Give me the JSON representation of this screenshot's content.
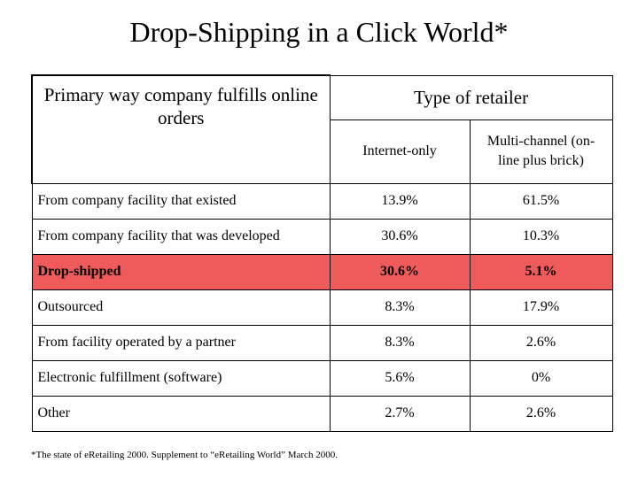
{
  "title": "Drop-Shipping in a Click World*",
  "header": {
    "left": "Primary way company fulfills online orders",
    "group": "Type of retailer",
    "col1": "Internet-only",
    "col2": "Multi-channel (on-line plus brick)"
  },
  "highlight_color": "#ef5a5a",
  "rows": [
    {
      "label": "From company facility that existed",
      "internet": "13.9%",
      "multi": "61.5%"
    },
    {
      "label": "From company facility that was developed",
      "internet": "30.6%",
      "multi": "10.3%"
    },
    {
      "label": "Drop-shipped",
      "internet": "30.6%",
      "multi": "5.1%"
    },
    {
      "label": "Outsourced",
      "internet": "8.3%",
      "multi": "17.9%"
    },
    {
      "label": "From facility operated by a partner",
      "internet": "8.3%",
      "multi": "2.6%"
    },
    {
      "label": "Electronic fulfillment (software)",
      "internet": "5.6%",
      "multi": "0%"
    },
    {
      "label": "Other",
      "internet": "2.7%",
      "multi": "2.6%"
    }
  ],
  "footnote": "*The state of eRetailing 2000. Supplement to “eRetailing World” March 2000."
}
